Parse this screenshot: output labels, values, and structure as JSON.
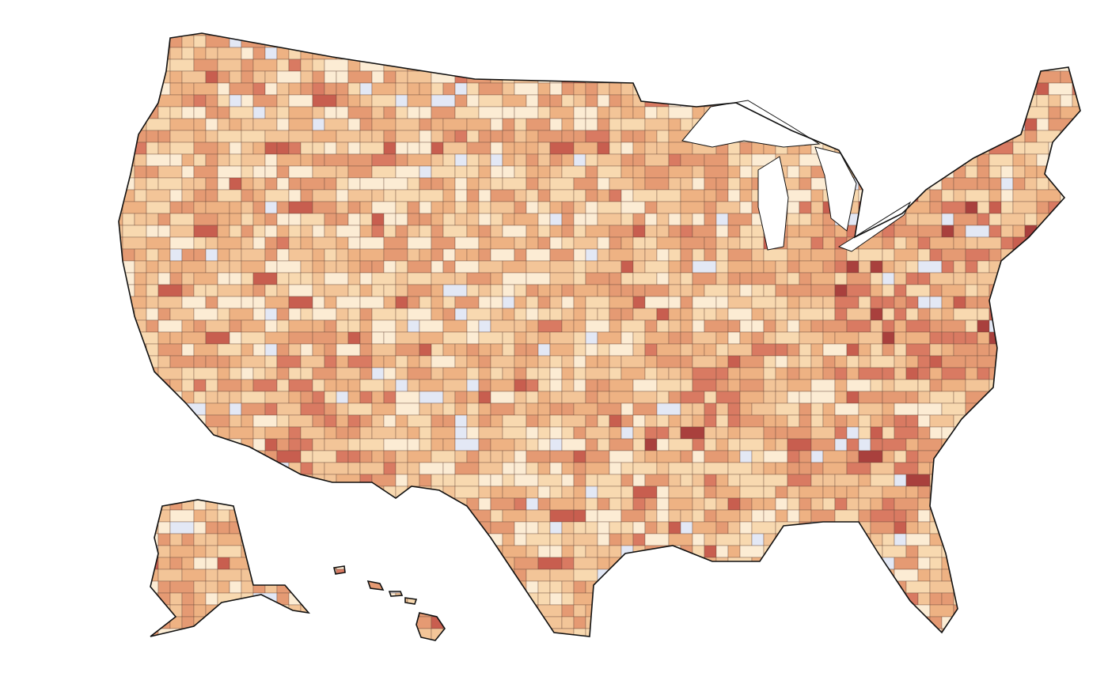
{
  "map": {
    "palette": [
      "#fcecd4",
      "#f8d9b0",
      "#f3c598",
      "#eeb283",
      "#e59a73",
      "#d97a62",
      "#c85e4f",
      "#a9403d"
    ],
    "no_data_color": "#e3e8f5",
    "county_border_color": "#6a4a3c",
    "outline_color": "#111111"
  }
}
